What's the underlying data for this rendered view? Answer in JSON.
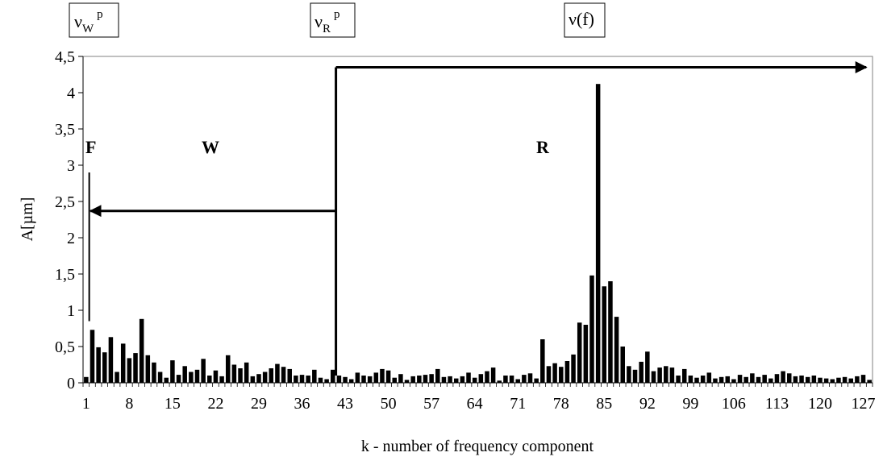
{
  "chart_data": {
    "type": "bar",
    "xlabel": "k - number of frequency component",
    "ylabel": "A[µm]",
    "ylim": [
      0,
      4.5
    ],
    "ytick_values": [
      0,
      0.5,
      1,
      1.5,
      2,
      2.5,
      3,
      3.5,
      4,
      4.5
    ],
    "ytick_labels": [
      "0",
      "0,5",
      "1",
      "1,5",
      "2",
      "2,5",
      "3",
      "3,5",
      "4",
      "4,5"
    ],
    "xrange": [
      1,
      128
    ],
    "xtick_values": [
      1,
      8,
      15,
      22,
      29,
      36,
      43,
      50,
      57,
      64,
      71,
      78,
      85,
      92,
      99,
      106,
      113,
      120,
      127
    ],
    "xtick_labels": [
      "1",
      "8",
      "15",
      "22",
      "29",
      "36",
      "43",
      "50",
      "57",
      "64",
      "71",
      "78",
      "85",
      "92",
      "99",
      "106",
      "113",
      "120",
      "127"
    ],
    "k": [
      1,
      2,
      3,
      4,
      5,
      6,
      7,
      8,
      9,
      10,
      11,
      12,
      13,
      14,
      15,
      16,
      17,
      18,
      19,
      20,
      21,
      22,
      23,
      24,
      25,
      26,
      27,
      28,
      29,
      30,
      31,
      32,
      33,
      34,
      35,
      36,
      37,
      38,
      39,
      40,
      41,
      42,
      43,
      44,
      45,
      46,
      47,
      48,
      49,
      50,
      51,
      52,
      53,
      54,
      55,
      56,
      57,
      58,
      59,
      60,
      61,
      62,
      63,
      64,
      65,
      66,
      67,
      68,
      69,
      70,
      71,
      72,
      73,
      74,
      75,
      76,
      77,
      78,
      79,
      80,
      81,
      82,
      83,
      84,
      85,
      86,
      87,
      88,
      89,
      90,
      91,
      92,
      93,
      94,
      95,
      96,
      97,
      98,
      99,
      100,
      101,
      102,
      103,
      104,
      105,
      106,
      107,
      108,
      109,
      110,
      111,
      112,
      113,
      114,
      115,
      116,
      117,
      118,
      119,
      120,
      121,
      122,
      123,
      124,
      125,
      126,
      127,
      128
    ],
    "values": [
      0.08,
      0.73,
      0.49,
      0.42,
      0.63,
      0.15,
      0.54,
      0.34,
      0.41,
      0.88,
      0.38,
      0.28,
      0.15,
      0.07,
      0.31,
      0.11,
      0.23,
      0.15,
      0.18,
      0.33,
      0.1,
      0.17,
      0.09,
      0.38,
      0.25,
      0.2,
      0.28,
      0.09,
      0.12,
      0.15,
      0.2,
      0.26,
      0.22,
      0.19,
      0.1,
      0.11,
      0.1,
      0.18,
      0.07,
      0.05,
      0.18,
      0.1,
      0.08,
      0.05,
      0.14,
      0.1,
      0.09,
      0.14,
      0.19,
      0.17,
      0.07,
      0.12,
      0.04,
      0.09,
      0.1,
      0.11,
      0.12,
      0.19,
      0.08,
      0.09,
      0.06,
      0.09,
      0.14,
      0.07,
      0.12,
      0.16,
      0.21,
      0.03,
      0.1,
      0.1,
      0.05,
      0.11,
      0.13,
      0.06,
      0.6,
      0.23,
      0.27,
      0.22,
      0.3,
      0.39,
      0.83,
      0.8,
      1.48,
      4.12,
      1.33,
      1.4,
      0.91,
      0.5,
      0.23,
      0.18,
      0.29,
      0.43,
      0.16,
      0.21,
      0.23,
      0.21,
      0.1,
      0.19,
      0.1,
      0.07,
      0.1,
      0.14,
      0.06,
      0.08,
      0.09,
      0.05,
      0.11,
      0.08,
      0.13,
      0.08,
      0.11,
      0.06,
      0.12,
      0.16,
      0.13,
      0.09,
      0.1,
      0.08,
      0.1,
      0.07,
      0.06,
      0.05,
      0.07,
      0.08,
      0.06,
      0.09,
      0.11,
      0.04
    ],
    "bar_color": "#000000",
    "grid": false,
    "legend": "none",
    "annotations": {
      "regions": [
        "F",
        "W",
        "R"
      ],
      "markers": [
        {
          "base": "ν",
          "sub": "W",
          "sup": "p"
        },
        {
          "base": "ν",
          "sub": "R",
          "sup": "p"
        },
        {
          "base": "ν(f)",
          "sub": "",
          "sup": ""
        }
      ],
      "arrows": [
        {
          "from_k": 41,
          "to_k": 128,
          "at_A": 4.35
        },
        {
          "from_k": 41,
          "to_k": 2,
          "at_A": 2.37
        }
      ],
      "f_line": {
        "k": 2,
        "top_A": 2.9,
        "bottom_A": 0.85
      },
      "w_boundary": {
        "k": 41,
        "top_A": 4.35,
        "bottom_A": 0.1
      }
    }
  }
}
